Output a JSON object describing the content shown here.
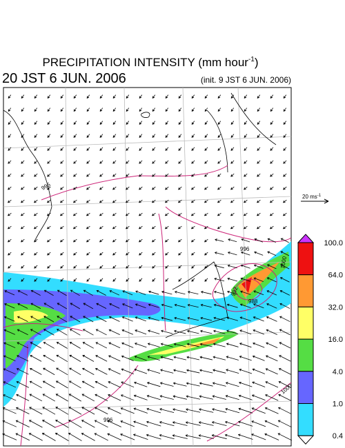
{
  "header": {
    "title": "PRECIPITATION INTENSITY (mm hour",
    "title_superscript": "-1",
    "title_close": ")",
    "valid_time": "20 JST 6 JUN. 2006",
    "init_time": "(init. 9 JST 6 JUN. 2006)"
  },
  "wind_scale": {
    "label": "20 ms",
    "superscript": "-1"
  },
  "legend": {
    "labels": [
      "100.0",
      "64.0",
      "32.0",
      "16.0",
      "4.0",
      "1.0",
      "0.4"
    ],
    "colors": [
      "#cc33ff",
      "#ee1111",
      "#ff9933",
      "#ffff66",
      "#55dd44",
      "#6666ff",
      "#33ddff",
      "#ffffff"
    ]
  },
  "contour_labels": [
    "996",
    "996",
    "992",
    "988",
    "1000",
    "1000",
    "996"
  ]
}
